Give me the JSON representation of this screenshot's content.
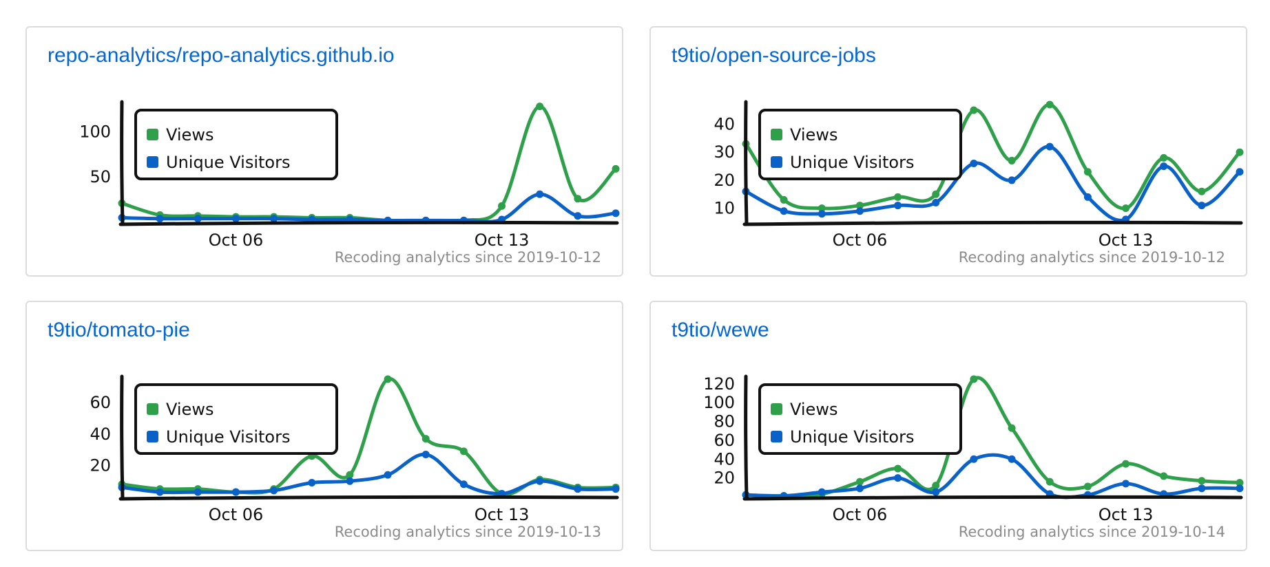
{
  "footer_prefix": "Recoding analytics since",
  "colors": {
    "views": "#2ea04a",
    "unique": "#0a62c9",
    "axis": "#111111",
    "title": "#0366d6"
  },
  "cards": [
    {
      "title": "repo-analytics/repo-analytics.github.io",
      "footer": "Recoding analytics since 2019-10-12",
      "chart_data": {
        "type": "line",
        "x": [
          "2019-10-03",
          "2019-10-04",
          "2019-10-05",
          "2019-10-06",
          "2019-10-07",
          "2019-10-08",
          "2019-10-09",
          "2019-10-10",
          "2019-10-11",
          "2019-10-12",
          "2019-10-13",
          "2019-10-14",
          "2019-10-15",
          "2019-10-16"
        ],
        "series": [
          {
            "name": "Views",
            "values": [
              21,
              8,
              7,
              6,
              6,
              5,
              5,
              2,
              2,
              2,
              18,
              128,
              26,
              59
            ]
          },
          {
            "name": "Unique Visitors",
            "values": [
              5,
              4,
              4,
              4,
              4,
              3,
              3,
              2,
              2,
              2,
              3,
              31,
              7,
              10
            ]
          }
        ],
        "ylim": [
          0,
          130
        ],
        "yticks": [
          50,
          100
        ],
        "xticks": [
          {
            "value": "2019-10-06",
            "label": "Oct 06"
          },
          {
            "value": "2019-10-13",
            "label": "Oct 13"
          }
        ],
        "legend_position": "top-left",
        "grid": false
      }
    },
    {
      "title": "t9tio/open-source-jobs",
      "footer": "Recoding analytics since 2019-10-12",
      "chart_data": {
        "type": "line",
        "x": [
          "2019-10-03",
          "2019-10-04",
          "2019-10-05",
          "2019-10-06",
          "2019-10-07",
          "2019-10-08",
          "2019-10-09",
          "2019-10-10",
          "2019-10-11",
          "2019-10-12",
          "2019-10-13",
          "2019-10-14",
          "2019-10-15",
          "2019-10-16"
        ],
        "series": [
          {
            "name": "Views",
            "values": [
              33,
              13,
              10,
              11,
              14,
              15,
              45,
              27,
              47,
              23,
              10,
              28,
              16,
              30
            ]
          },
          {
            "name": "Unique Visitors",
            "values": [
              16,
              9,
              8,
              9,
              11,
              12,
              26,
              20,
              32,
              14,
              6,
              25,
              11,
              23
            ]
          }
        ],
        "ylim": [
          5,
          47
        ],
        "yticks": [
          10,
          20,
          30,
          40
        ],
        "xticks": [
          {
            "value": "2019-10-06",
            "label": "Oct 06"
          },
          {
            "value": "2019-10-13",
            "label": "Oct 13"
          }
        ],
        "legend_position": "top-left",
        "grid": false
      }
    },
    {
      "title": "t9tio/tomato-pie",
      "footer": "Recoding analytics since 2019-10-13",
      "chart_data": {
        "type": "line",
        "x": [
          "2019-10-03",
          "2019-10-04",
          "2019-10-05",
          "2019-10-06",
          "2019-10-07",
          "2019-10-08",
          "2019-10-09",
          "2019-10-10",
          "2019-10-11",
          "2019-10-12",
          "2019-10-13",
          "2019-10-14",
          "2019-10-15",
          "2019-10-16"
        ],
        "series": [
          {
            "name": "Views",
            "values": [
              8,
              5,
              5,
              3,
              5,
              26,
              14,
              75,
              37,
              29,
              2,
              11,
              6,
              6
            ]
          },
          {
            "name": "Unique Visitors",
            "values": [
              6,
              3,
              3,
              3,
              4,
              9,
              10,
              14,
              27,
              8,
              2,
              10,
              5,
              5
            ]
          }
        ],
        "ylim": [
          0,
          75
        ],
        "yticks": [
          20,
          40,
          60
        ],
        "xticks": [
          {
            "value": "2019-10-06",
            "label": "Oct 06"
          },
          {
            "value": "2019-10-13",
            "label": "Oct 13"
          }
        ],
        "legend_position": "top-left",
        "grid": false
      }
    },
    {
      "title": "t9tio/wewe",
      "footer": "Recoding analytics since 2019-10-14",
      "chart_data": {
        "type": "line",
        "x": [
          "2019-10-03",
          "2019-10-04",
          "2019-10-05",
          "2019-10-06",
          "2019-10-07",
          "2019-10-08",
          "2019-10-09",
          "2019-10-10",
          "2019-10-11",
          "2019-10-12",
          "2019-10-13",
          "2019-10-14",
          "2019-10-15",
          "2019-10-16"
        ],
        "series": [
          {
            "name": "Views",
            "values": [
              2,
              1,
              3,
              16,
              30,
              12,
              125,
              73,
              16,
              11,
              35,
              22,
              17,
              15
            ]
          },
          {
            "name": "Unique Visitors",
            "values": [
              2,
              1,
              5,
              9,
              20,
              5,
              40,
              40,
              3,
              2,
              14,
              3,
              9,
              9
            ]
          }
        ],
        "ylim": [
          0,
          125
        ],
        "yticks": [
          20,
          40,
          60,
          80,
          100,
          120
        ],
        "xticks": [
          {
            "value": "2019-10-06",
            "label": "Oct 06"
          },
          {
            "value": "2019-10-13",
            "label": "Oct 13"
          }
        ],
        "legend_position": "top-left",
        "grid": false
      }
    }
  ]
}
